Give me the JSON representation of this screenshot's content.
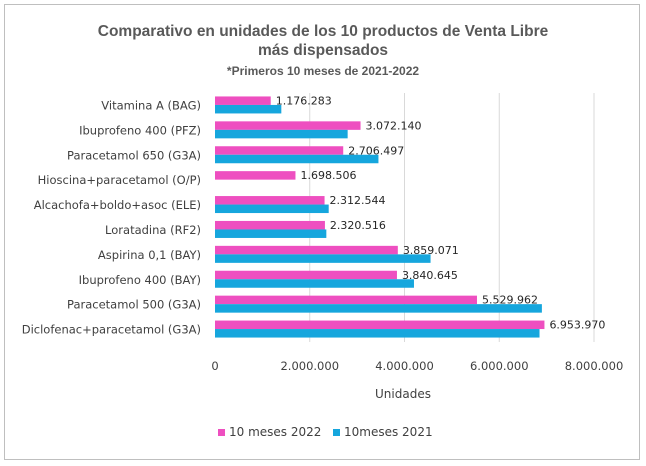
{
  "chart_data": {
    "type": "bar",
    "orientation": "horizontal",
    "title": "Comparativo en unidades de los 10 productos de Venta Libre",
    "title_line2": "más dispensados",
    "subtitle": "*Primeros 10 meses de 2021-2022",
    "xlabel": "Unidades",
    "ylabel": "",
    "xlim": [
      0,
      8000000
    ],
    "x_ticks": [
      0,
      2000000,
      4000000,
      6000000,
      8000000
    ],
    "x_tick_labels": [
      "0",
      "2.000.000",
      "4.000.000",
      "6.000.000",
      "8.000.000"
    ],
    "grid": true,
    "legend_position": "bottom",
    "categories": [
      "Vitamina A (BAG)",
      "Ibuprofeno  400 (PFZ)",
      "Paracetamol 650 (G3A)",
      "Hioscina+paracetamol  (O/P)",
      "Alcachofa+boldo+asoc  (ELE)",
      "Loratadina  (RF2)",
      "Aspirina 0,1 (BAY)",
      "Ibuprofeno  400 (BAY)",
      "Paracetamol 500 (G3A)",
      "Diclofenac+paracetamol  (G3A)"
    ],
    "series": [
      {
        "name": "10 meses 2022",
        "color": "#ee4fc0",
        "values": [
          1176283,
          3072140,
          2706497,
          1698506,
          2312544,
          2320516,
          3859071,
          3840645,
          5529962,
          6953970
        ],
        "labels": [
          "1.176.283",
          "3.072.140",
          "2.706.497",
          "1.698.506",
          "2.312.544",
          "2.320.516",
          "3.859.071",
          "3.840.645",
          "5.529.962",
          "6.953.970"
        ]
      },
      {
        "name": "10meses 2021",
        "color": "#16a6dd",
        "values": [
          1400000,
          2800000,
          3450000,
          0,
          2400000,
          2350000,
          4550000,
          4200000,
          6900000,
          6850000
        ]
      }
    ]
  }
}
